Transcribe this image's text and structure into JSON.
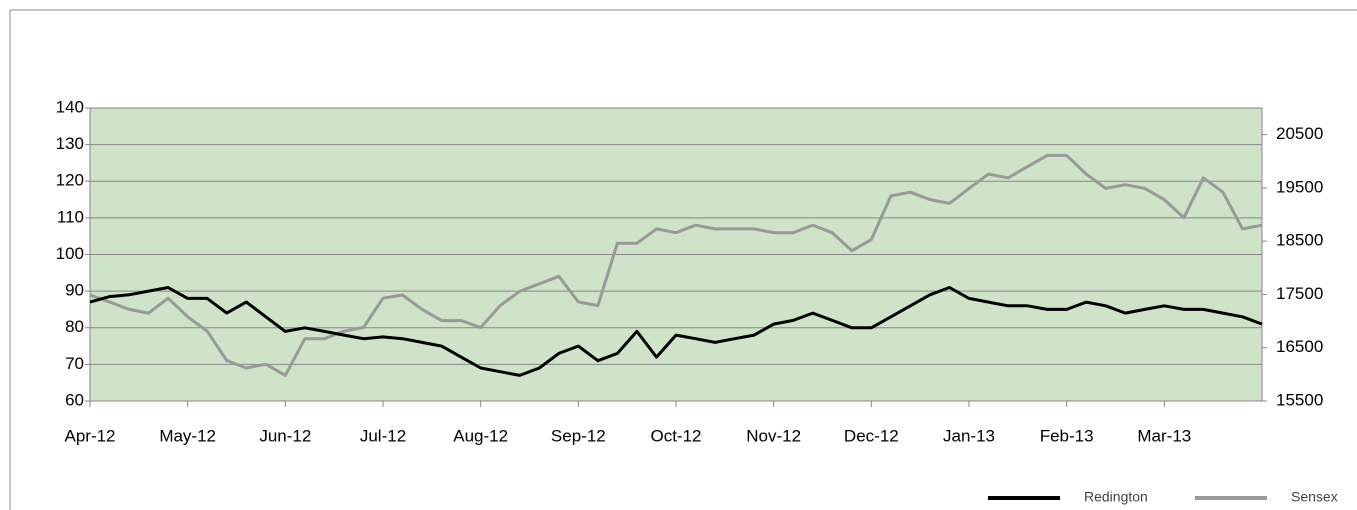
{
  "chart_data": {
    "type": "line",
    "categories": [
      "Apr-12",
      null,
      null,
      null,
      null,
      "May-12",
      null,
      null,
      null,
      null,
      "Jun-12",
      null,
      null,
      null,
      null,
      "Jul-12",
      null,
      null,
      null,
      null,
      "Aug-12",
      null,
      null,
      null,
      null,
      "Sep-12",
      null,
      null,
      null,
      null,
      "Oct-12",
      null,
      null,
      null,
      null,
      "Nov-12",
      null,
      null,
      null,
      null,
      "Dec-12",
      null,
      null,
      null,
      null,
      "Jan-13",
      null,
      null,
      null,
      null,
      "Feb-13",
      null,
      null,
      null,
      null,
      "Mar-13",
      null,
      null,
      null,
      null,
      null
    ],
    "series": [
      {
        "name": "Redington",
        "color": "#000000",
        "axis": "y",
        "values": [
          87,
          88.5,
          89,
          90,
          91,
          88,
          88,
          84,
          87,
          83,
          79,
          80,
          79,
          78,
          77,
          77.5,
          77,
          76,
          75,
          72,
          69,
          68,
          67,
          69,
          73,
          75,
          71,
          73,
          79,
          72,
          78,
          77,
          76,
          77,
          78,
          81,
          82,
          84,
          82,
          80,
          80,
          83,
          86,
          89,
          91,
          88,
          87,
          86,
          86,
          85,
          85,
          87,
          86,
          84,
          85,
          86,
          85,
          85,
          84,
          83,
          81
        ]
      },
      {
        "name": "Sensex",
        "color": "#999999",
        "axis": "y2",
        "values": [
          17490,
          17360,
          17220,
          17150,
          17430,
          17080,
          16810,
          16260,
          16120,
          16190,
          15980,
          16670,
          16670,
          16810,
          16880,
          17430,
          17490,
          17220,
          17010,
          17010,
          16880,
          17290,
          17560,
          17700,
          17840,
          17360,
          17290,
          18460,
          18460,
          18730,
          18660,
          18800,
          18730,
          18730,
          18730,
          18660,
          18660,
          18800,
          18660,
          18320,
          18530,
          19350,
          19420,
          19280,
          19210,
          19490,
          19760,
          19690,
          19900,
          20110,
          20110,
          19760,
          19490,
          19560,
          19490,
          19280,
          18940,
          19690,
          19420,
          18730,
          18800
        ]
      }
    ],
    "ylim": [
      60,
      140
    ],
    "yticks": [
      60,
      70,
      80,
      90,
      100,
      110,
      120,
      130,
      140
    ],
    "y2lim": [
      15500,
      21000
    ],
    "y2ticks": [
      15500,
      16500,
      17500,
      18500,
      19500,
      20500
    ],
    "grid": true,
    "legend": "bottom-right"
  }
}
